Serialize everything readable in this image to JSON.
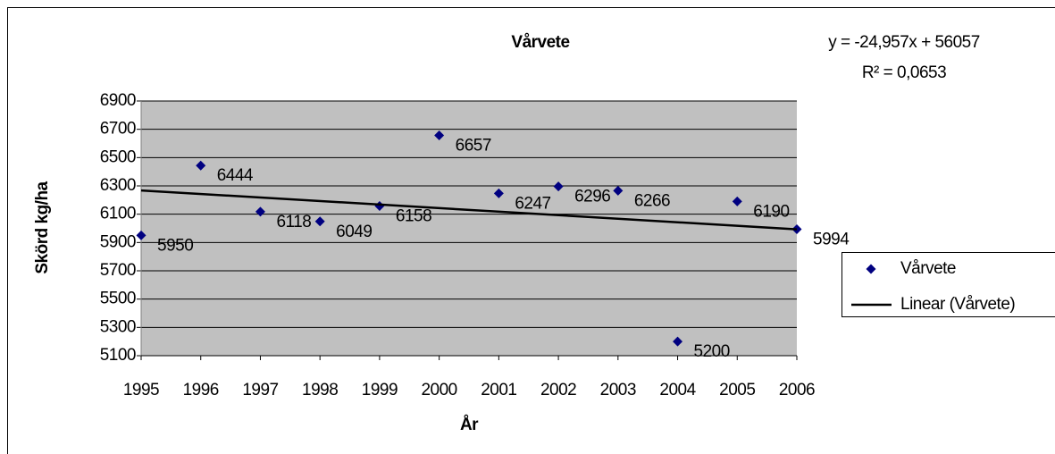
{
  "chart_data": {
    "type": "scatter",
    "title": "Vårvete",
    "annotations": [
      "y = -24,957x + 56057",
      "R² = 0,0653"
    ],
    "x_label": "År",
    "y_label": "Skörd kg/ha",
    "x": [
      1995,
      1996,
      1997,
      1998,
      1999,
      2000,
      2001,
      2002,
      2003,
      2004,
      2005,
      2006
    ],
    "xlim": [
      1995,
      2006
    ],
    "xticks": [
      1995,
      1996,
      1997,
      1998,
      1999,
      2000,
      2001,
      2002,
      2003,
      2004,
      2005,
      2006
    ],
    "ylim": [
      5100,
      6900
    ],
    "yticks": [
      5100,
      5300,
      5500,
      5700,
      5900,
      6100,
      6300,
      6500,
      6700,
      6900
    ],
    "grid": true,
    "legend": "right",
    "series": [
      {
        "name": "Vårvete",
        "color": "#000080",
        "values": [
          5950,
          6444,
          6118,
          6049,
          6158,
          6657,
          6247,
          6296,
          6266,
          5200,
          6190,
          5994
        ]
      },
      {
        "name": "Linear (Vårvete)",
        "color": "#000000",
        "type": "line",
        "x": [
          1995,
          2006
        ],
        "values": [
          6268,
          5993
        ]
      }
    ]
  }
}
